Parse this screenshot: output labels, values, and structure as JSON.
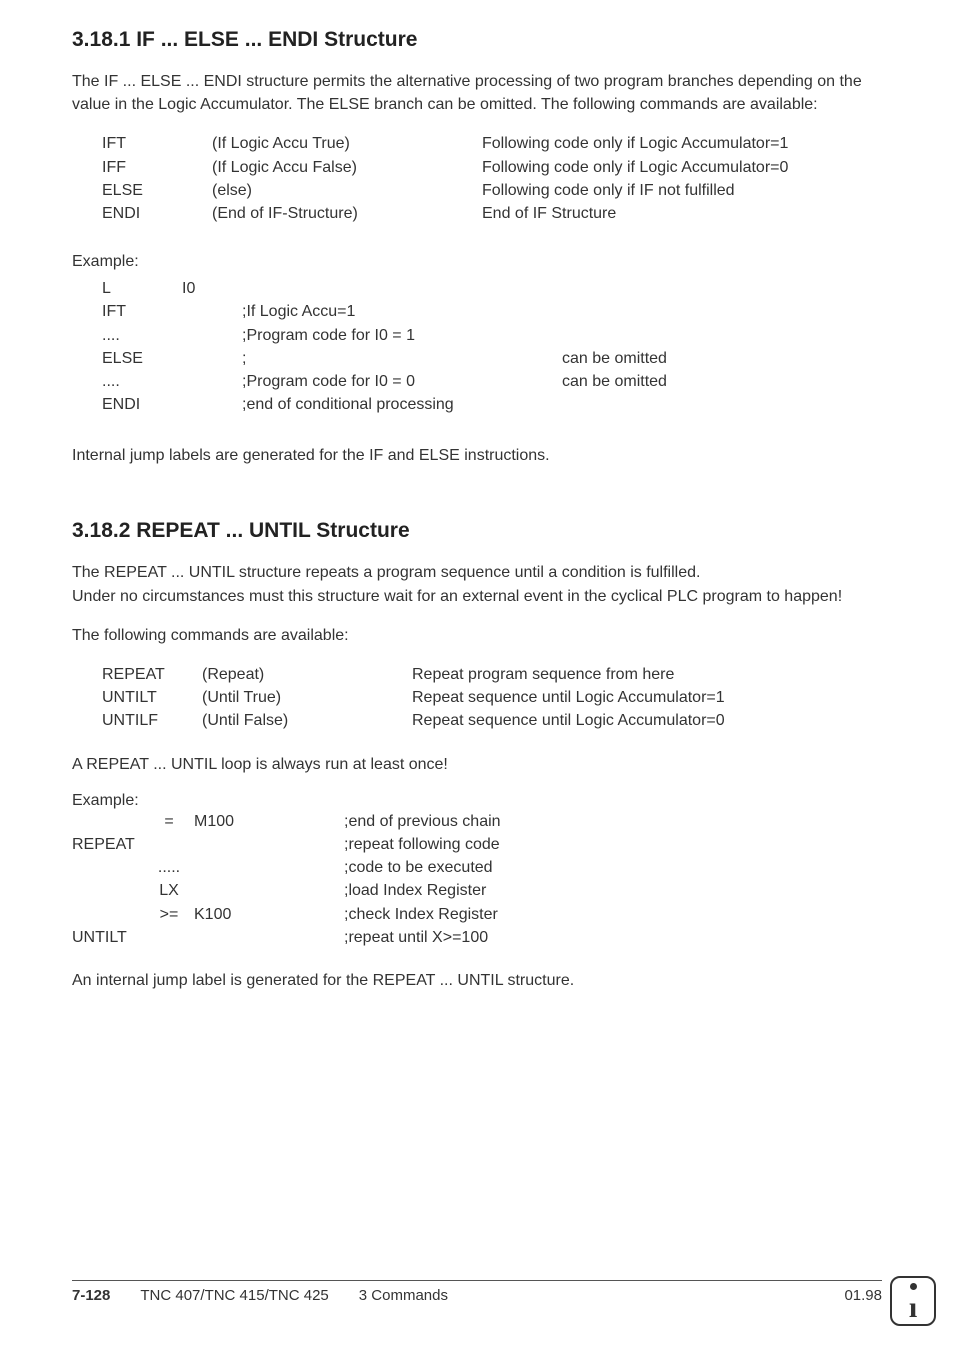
{
  "section1": {
    "heading": "3.18.1  IF ... ELSE ... ENDI Structure",
    "intro": "The IF ... ELSE ... ENDI structure permits the alternative processing of two program branches depending on the value in the Logic Accumulator. The ELSE branch can be omitted. The following commands are available:",
    "commands": [
      {
        "mnemonic": "IFT",
        "paren": "(If Logic Accu True)",
        "desc": "Following code only if Logic Accumulator=1"
      },
      {
        "mnemonic": "IFF",
        "paren": "(If Logic Accu False)",
        "desc": "Following code only if Logic Accumulator=0"
      },
      {
        "mnemonic": "ELSE",
        "paren": "(else)",
        "desc": "Following code only if IF not fulfilled"
      },
      {
        "mnemonic": "ENDI",
        "paren": "(End of IF-Structure)",
        "desc": "End of IF Structure"
      }
    ],
    "example_label": "Example:",
    "example": [
      {
        "c1": "L",
        "c2": "I0",
        "c3": "",
        "c4": ""
      },
      {
        "c1": "IFT",
        "c2": "",
        "c3": ";If Logic Accu=1",
        "c4": ""
      },
      {
        "c1": "....",
        "c2": "",
        "c3": ";Program code for I0 = 1",
        "c4": ""
      },
      {
        "c1": "ELSE",
        "c2": "",
        "c3": ";",
        "c4": "can be omitted"
      },
      {
        "c1": "",
        "c2": "",
        "c3": "",
        "c4": ""
      },
      {
        "c1": "....",
        "c2": "",
        "c3": ";Program code for I0 = 0",
        "c4": "can be omitted"
      },
      {
        "c1": "ENDI",
        "c2": "",
        "c3": ";end of conditional processing",
        "c4": ""
      }
    ],
    "outro": "Internal jump labels are generated for the IF and ELSE instructions."
  },
  "section2": {
    "heading": "3.18.2  REPEAT ... UNTIL Structure",
    "para1": "The REPEAT ... UNTIL structure repeats a program sequence until a condition is fulfilled.",
    "para2": "Under no circumstances must this structure wait for an external event in the cyclical PLC program to happen!",
    "para3": "The following commands are available:",
    "commands": [
      {
        "mnemonic": "REPEAT",
        "paren": "(Repeat)",
        "desc": "Repeat program sequence from here"
      },
      {
        "mnemonic": "UNTILT",
        "paren": "(Until True)",
        "desc": "Repeat sequence until Logic Accumulator=1"
      },
      {
        "mnemonic": "UNTILF",
        "paren": "(Until False)",
        "desc": "Repeat sequence until Logic Accumulator=0"
      }
    ],
    "note": "A REPEAT ... UNTIL loop is always run at least once!",
    "example_label": "Example:",
    "example": [
      {
        "c0": "",
        "c1": "=",
        "c2": "M100",
        "c3": ";end of previous chain"
      },
      {
        "c0": "REPEAT",
        "c1": "",
        "c2": "",
        "c3": ";repeat following code"
      },
      {
        "c0": "",
        "c1": ".....",
        "c2": "",
        "c3": ";code to be executed"
      },
      {
        "c0": "",
        "c1": "LX",
        "c2": "",
        "c3": ";load Index Register"
      },
      {
        "c0": "",
        "c1": ">=",
        "c2": "K100",
        "c3": ";check Index Register"
      },
      {
        "c0": "UNTILT",
        "c1": "",
        "c2": "",
        "c3": ";repeat until X>=100"
      }
    ],
    "outro": "An internal jump label is generated for the REPEAT ... UNTIL structure."
  },
  "footer": {
    "page": "7-128",
    "doc": "TNC 407/TNC 415/TNC 425",
    "chapter": "3  Commands",
    "date": "01.98"
  }
}
